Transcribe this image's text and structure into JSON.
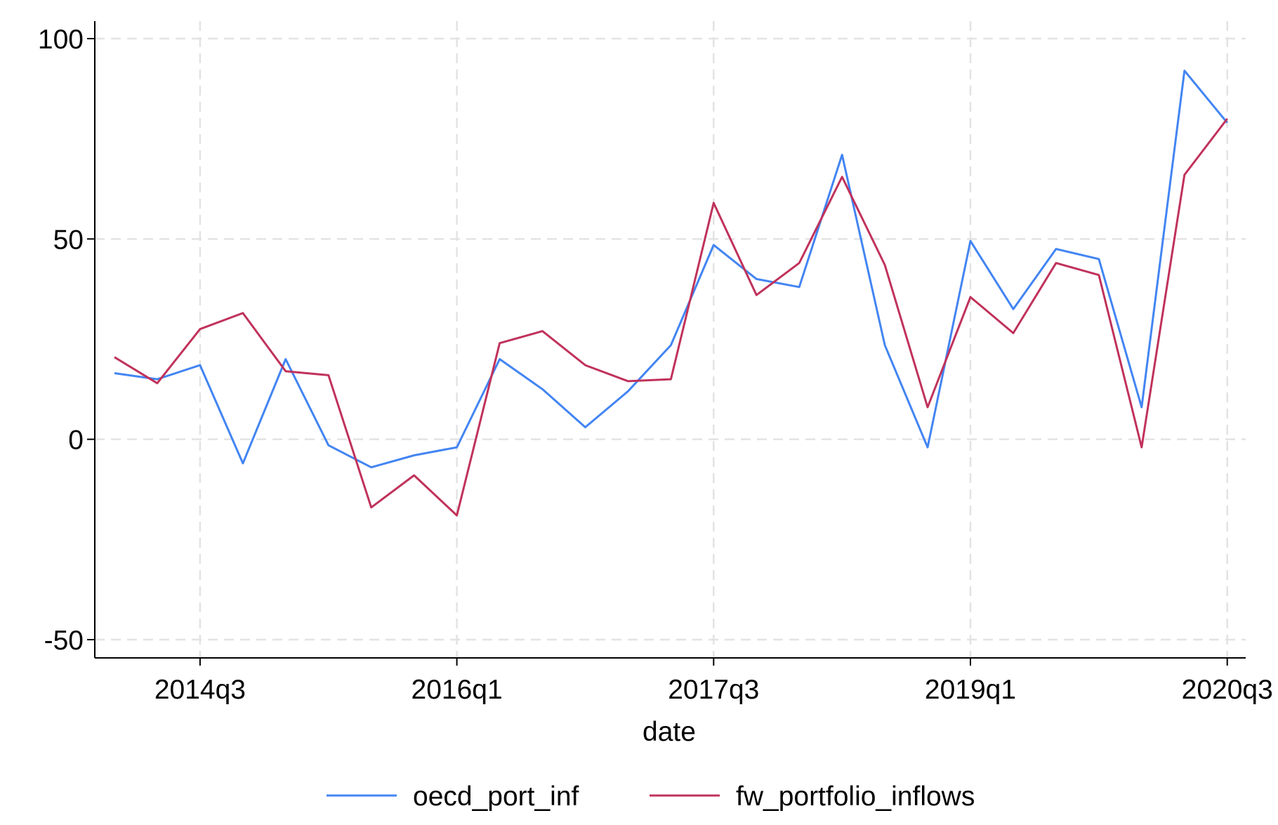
{
  "chart_data": {
    "type": "line",
    "xlabel": "date",
    "ylabel": "",
    "ylim": [
      -50,
      100
    ],
    "y_ticks": [
      -50,
      0,
      50,
      100
    ],
    "x_ticks": [
      "2014q3",
      "2016q1",
      "2017q3",
      "2019q1",
      "2020q3"
    ],
    "grid": true,
    "legend_position": "bottom",
    "x": [
      "2014q1",
      "2014q2",
      "2014q3",
      "2014q4",
      "2015q1",
      "2015q2",
      "2015q3",
      "2015q4",
      "2016q1",
      "2016q2",
      "2016q3",
      "2016q4",
      "2017q1",
      "2017q2",
      "2017q3",
      "2017q4",
      "2018q1",
      "2018q2",
      "2018q3",
      "2018q4",
      "2019q1",
      "2019q2",
      "2019q3",
      "2019q4",
      "2020q1",
      "2020q2",
      "2020q3"
    ],
    "series": [
      {
        "name": "oecd_port_inf",
        "color": "#4385f2",
        "values": [
          16.5,
          15,
          18.5,
          -6,
          20,
          -1.5,
          -7,
          -4,
          -2,
          20,
          12.5,
          3,
          12,
          23.5,
          48.5,
          40,
          38,
          71,
          23.5,
          -2,
          49.5,
          32.5,
          47.5,
          45,
          8,
          92,
          79
        ]
      },
      {
        "name": "fw_portfolio_inflows",
        "color": "#c0325b",
        "values": [
          20.5,
          14,
          27.5,
          31.5,
          17,
          16,
          -17,
          -9,
          -19,
          24,
          27,
          18.5,
          14.5,
          15,
          59,
          36,
          44,
          65.5,
          43.5,
          8,
          35.5,
          26.5,
          44,
          41,
          -2,
          66,
          80
        ]
      }
    ]
  }
}
